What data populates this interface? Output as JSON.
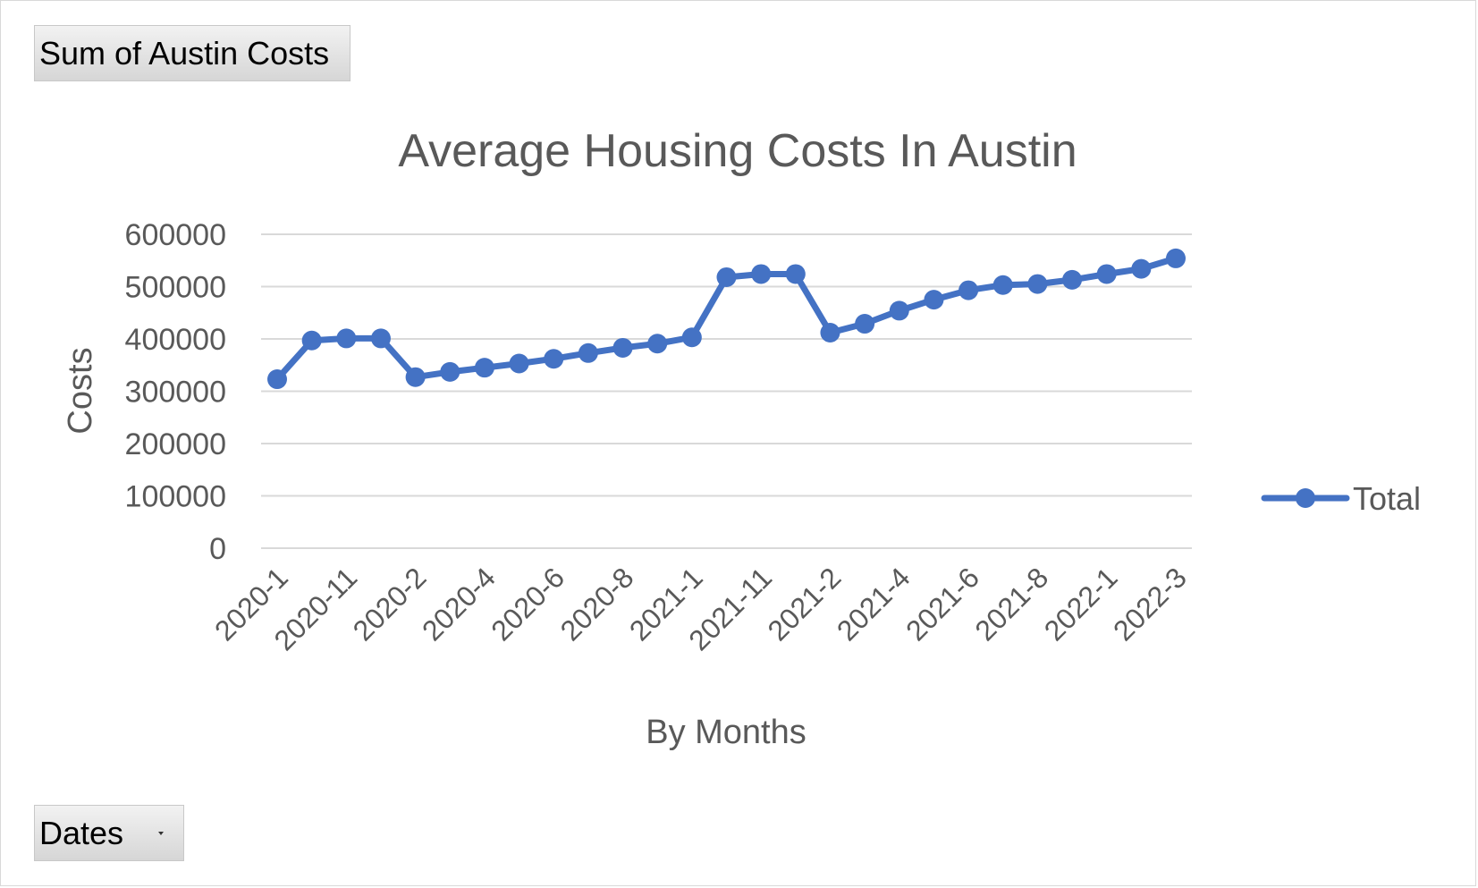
{
  "field_buttons": {
    "values_field": "Sum of Austin Costs",
    "axis_field": "Dates"
  },
  "colors": {
    "series": "#4472c4",
    "gridline": "#d9d9d9",
    "text": "#595959"
  },
  "chart_data": {
    "type": "line",
    "title": "Average Housing Costs In Austin",
    "xlabel": "By Months",
    "ylabel": "Costs",
    "ylim": [
      0,
      600000
    ],
    "yticks": [
      "0",
      "100000",
      "200000",
      "300000",
      "400000",
      "500000",
      "600000"
    ],
    "grid": true,
    "legend_position": "right",
    "categories": [
      "2020-1",
      "",
      "2020-11",
      "",
      "2020-2",
      "",
      "2020-4",
      "",
      "2020-6",
      "",
      "2020-8",
      "",
      "2021-1",
      "",
      "2021-11",
      "",
      "2021-2",
      "",
      "2021-4",
      "",
      "2021-6",
      "",
      "2021-8",
      "",
      "2022-1",
      "",
      "2022-3"
    ],
    "series": [
      {
        "name": "Total",
        "marker": "circle",
        "values": [
          323000,
          397000,
          401000,
          401000,
          327000,
          337000,
          345000,
          353000,
          362000,
          373000,
          383000,
          391000,
          403000,
          518000,
          524000,
          524000,
          412000,
          429000,
          454000,
          475000,
          493000,
          503000,
          505000,
          513000,
          524000,
          534000,
          554000
        ]
      }
    ]
  }
}
